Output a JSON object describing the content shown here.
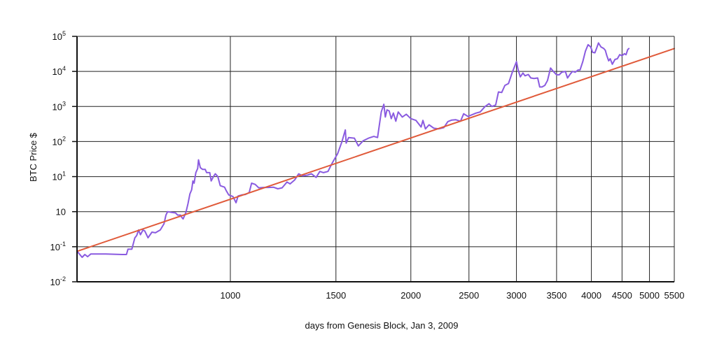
{
  "chart_data": {
    "type": "line",
    "title": "",
    "xlabel": "days from Genesis Block, Jan 3, 2009",
    "ylabel": "BTC Price $",
    "x_scale": "log",
    "y_scale": "log",
    "xlim": [
      555,
      5500
    ],
    "ylim": [
      0.01,
      100000
    ],
    "grid": true,
    "x_ticks": [
      {
        "value": 1000,
        "label": "1000"
      },
      {
        "value": 1500,
        "label": "1500"
      },
      {
        "value": 2000,
        "label": "2000"
      },
      {
        "value": 2500,
        "label": "2500"
      },
      {
        "value": 3000,
        "label": "3000"
      },
      {
        "value": 3500,
        "label": "3500"
      },
      {
        "value": 4000,
        "label": "4000"
      },
      {
        "value": 4500,
        "label": "4500"
      },
      {
        "value": 5000,
        "label": "5000"
      },
      {
        "value": 5500,
        "label": "5500"
      }
    ],
    "y_ticks": [
      {
        "value": 0.01,
        "base": "10",
        "exp": "-2"
      },
      {
        "value": 0.1,
        "base": "10",
        "exp": "-1"
      },
      {
        "value": 1,
        "base": "10",
        "exp": ""
      },
      {
        "value": 10,
        "base": "10",
        "exp": "1"
      },
      {
        "value": 100,
        "base": "10",
        "exp": "2"
      },
      {
        "value": 1000,
        "base": "10",
        "exp": "3"
      },
      {
        "value": 10000,
        "base": "10",
        "exp": "4"
      },
      {
        "value": 100000,
        "base": "10",
        "exp": "5"
      }
    ],
    "series": [
      {
        "color": "#8a5be0",
        "points": [
          [
            555,
            0.075
          ],
          [
            561,
            0.06
          ],
          [
            566,
            0.05
          ],
          [
            572,
            0.06
          ],
          [
            578,
            0.052
          ],
          [
            585,
            0.062
          ],
          [
            620,
            0.062
          ],
          [
            660,
            0.06
          ],
          [
            671,
            0.06
          ],
          [
            675,
            0.085
          ],
          [
            685,
            0.085
          ],
          [
            693,
            0.18
          ],
          [
            698,
            0.21
          ],
          [
            703,
            0.3
          ],
          [
            708,
            0.22
          ],
          [
            715,
            0.3
          ],
          [
            720,
            0.28
          ],
          [
            729,
            0.18
          ],
          [
            740,
            0.26
          ],
          [
            750,
            0.25
          ],
          [
            764,
            0.3
          ],
          [
            775,
            0.45
          ],
          [
            781,
            0.8
          ],
          [
            786,
            1.0
          ],
          [
            798,
            0.95
          ],
          [
            810,
            0.92
          ],
          [
            817,
            0.8
          ],
          [
            826,
            0.8
          ],
          [
            830,
            0.68
          ],
          [
            834,
            0.62
          ],
          [
            843,
            0.95
          ],
          [
            850,
            1.7
          ],
          [
            856,
            3.2
          ],
          [
            862,
            4.2
          ],
          [
            866,
            7.5
          ],
          [
            870,
            6.5
          ],
          [
            876,
            13
          ],
          [
            882,
            17
          ],
          [
            885,
            30
          ],
          [
            891,
            18
          ],
          [
            899,
            16
          ],
          [
            908,
            16
          ],
          [
            913,
            13
          ],
          [
            924,
            13
          ],
          [
            929,
            7.5
          ],
          [
            937,
            10
          ],
          [
            944,
            12
          ],
          [
            953,
            10
          ],
          [
            962,
            5.5
          ],
          [
            978,
            5
          ],
          [
            984,
            4
          ],
          [
            994,
            3
          ],
          [
            1010,
            2.7
          ],
          [
            1022,
            1.8
          ],
          [
            1030,
            2.8
          ],
          [
            1045,
            3.0
          ],
          [
            1060,
            3.1
          ],
          [
            1075,
            3.5
          ],
          [
            1085,
            6.5
          ],
          [
            1100,
            6.0
          ],
          [
            1115,
            4.8
          ],
          [
            1135,
            4.9
          ],
          [
            1158,
            4.9
          ],
          [
            1180,
            5.0
          ],
          [
            1200,
            4.5
          ],
          [
            1220,
            4.8
          ],
          [
            1243,
            7
          ],
          [
            1258,
            6.2
          ],
          [
            1280,
            8
          ],
          [
            1300,
            12
          ],
          [
            1320,
            10.5
          ],
          [
            1345,
            11
          ],
          [
            1365,
            12
          ],
          [
            1390,
            9.5
          ],
          [
            1410,
            14
          ],
          [
            1430,
            13
          ],
          [
            1455,
            14
          ],
          [
            1480,
            25
          ],
          [
            1510,
            45
          ],
          [
            1535,
            100
          ],
          [
            1555,
            215
          ],
          [
            1560,
            90
          ],
          [
            1575,
            130
          ],
          [
            1610,
            125
          ],
          [
            1635,
            75
          ],
          [
            1665,
            105
          ],
          [
            1700,
            125
          ],
          [
            1735,
            140
          ],
          [
            1760,
            130
          ],
          [
            1785,
            700
          ],
          [
            1803,
            1150
          ],
          [
            1813,
            500
          ],
          [
            1825,
            800
          ],
          [
            1840,
            750
          ],
          [
            1855,
            450
          ],
          [
            1870,
            650
          ],
          [
            1888,
            380
          ],
          [
            1905,
            700
          ],
          [
            1935,
            500
          ],
          [
            1965,
            600
          ],
          [
            2000,
            450
          ],
          [
            2040,
            400
          ],
          [
            2080,
            260
          ],
          [
            2095,
            400
          ],
          [
            2115,
            230
          ],
          [
            2145,
            300
          ],
          [
            2185,
            240
          ],
          [
            2225,
            230
          ],
          [
            2270,
            250
          ],
          [
            2305,
            370
          ],
          [
            2340,
            410
          ],
          [
            2375,
            420
          ],
          [
            2420,
            380
          ],
          [
            2450,
            620
          ],
          [
            2490,
            520
          ],
          [
            2530,
            580
          ],
          [
            2570,
            650
          ],
          [
            2610,
            700
          ],
          [
            2660,
            1000
          ],
          [
            2700,
            1200
          ],
          [
            2730,
            1000
          ],
          [
            2770,
            1100
          ],
          [
            2800,
            2600
          ],
          [
            2835,
            2500
          ],
          [
            2870,
            4000
          ],
          [
            2910,
            4500
          ],
          [
            2950,
            9000
          ],
          [
            3000,
            19000
          ],
          [
            3020,
            11000
          ],
          [
            3045,
            7000
          ],
          [
            3075,
            9000
          ],
          [
            3100,
            7500
          ],
          [
            3140,
            8200
          ],
          [
            3170,
            6500
          ],
          [
            3210,
            6300
          ],
          [
            3255,
            6500
          ],
          [
            3280,
            3600
          ],
          [
            3310,
            3600
          ],
          [
            3345,
            4000
          ],
          [
            3380,
            5500
          ],
          [
            3420,
            12500
          ],
          [
            3460,
            9800
          ],
          [
            3500,
            8000
          ],
          [
            3535,
            8000
          ],
          [
            3570,
            9500
          ],
          [
            3620,
            10000
          ],
          [
            3650,
            6500
          ],
          [
            3690,
            8500
          ],
          [
            3720,
            10000
          ],
          [
            3760,
            9500
          ],
          [
            3800,
            11000
          ],
          [
            3830,
            11000
          ],
          [
            3870,
            19000
          ],
          [
            3910,
            38000
          ],
          [
            3950,
            58000
          ],
          [
            3990,
            50000
          ],
          [
            4020,
            35000
          ],
          [
            4055,
            34000
          ],
          [
            4080,
            45000
          ],
          [
            4110,
            65000
          ],
          [
            4150,
            50000
          ],
          [
            4195,
            45000
          ],
          [
            4220,
            40000
          ],
          [
            4245,
            28000
          ],
          [
            4275,
            20000
          ],
          [
            4300,
            23000
          ],
          [
            4335,
            16000
          ],
          [
            4380,
            22000
          ],
          [
            4420,
            23000
          ],
          [
            4460,
            30000
          ],
          [
            4500,
            28000
          ],
          [
            4540,
            32000
          ],
          [
            4570,
            30000
          ],
          [
            4600,
            42000
          ],
          [
            4620,
            45000
          ]
        ]
      },
      {
        "color": "#e05a3a",
        "type": "fit",
        "points": [
          [
            555,
            0.074
          ],
          [
            5500,
            45000
          ]
        ]
      }
    ]
  }
}
